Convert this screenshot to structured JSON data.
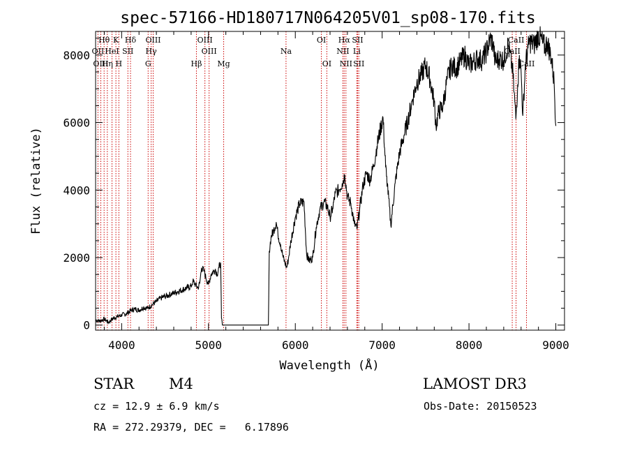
{
  "chart_data": {
    "type": "line",
    "title": "spec-57166-HD180717N064205V01_sp08-170.fits",
    "xlabel": "Wavelength (Å)",
    "ylabel": "Flux (relative)",
    "xlim": [
      3700,
      9100
    ],
    "ylim": [
      -150,
      8700
    ],
    "xticks": [
      4000,
      5000,
      6000,
      7000,
      8000,
      9000
    ],
    "yticks": [
      0,
      2000,
      4000,
      6000,
      8000
    ],
    "gap": [
      5160,
      5690
    ],
    "series": [
      {
        "name": "flux",
        "x": [
          3700,
          3750,
          3800,
          3850,
          3900,
          3950,
          4000,
          4050,
          4100,
          4150,
          4200,
          4250,
          4300,
          4350,
          4400,
          4450,
          4500,
          4550,
          4600,
          4650,
          4700,
          4750,
          4800,
          4820,
          4850,
          4880,
          4900,
          4920,
          4950,
          4970,
          5000,
          5030,
          5060,
          5080,
          5100,
          5120,
          5140,
          5150,
          5160,
          5690,
          5700,
          5720,
          5750,
          5780,
          5800,
          5830,
          5860,
          5900,
          5920,
          5950,
          6000,
          6050,
          6100,
          6130,
          6160,
          6200,
          6240,
          6280,
          6330,
          6370,
          6400,
          6430,
          6460,
          6500,
          6540,
          6570,
          6600,
          6640,
          6680,
          6710,
          6740,
          6780,
          6820,
          6860,
          6900,
          6940,
          6980,
          7010,
          7040,
          7050,
          7060,
          7100,
          7150,
          7200,
          7250,
          7300,
          7350,
          7400,
          7450,
          7500,
          7550,
          7600,
          7620,
          7650,
          7700,
          7750,
          7800,
          7850,
          7900,
          7950,
          8000,
          8050,
          8100,
          8150,
          8200,
          8250,
          8280,
          8300,
          8350,
          8400,
          8450,
          8500,
          8520,
          8540,
          8560,
          8580,
          8600,
          8620,
          8650,
          8680,
          8700,
          8750,
          8800,
          8850,
          8880,
          8900,
          8950,
          8980,
          9000
        ],
        "y": [
          150,
          120,
          180,
          80,
          200,
          250,
          300,
          330,
          420,
          480,
          440,
          520,
          500,
          600,
          700,
          800,
          850,
          900,
          950,
          1000,
          1050,
          1100,
          1150,
          1300,
          1200,
          1100,
          1250,
          1700,
          1600,
          1400,
          1200,
          1500,
          1600,
          1650,
          1500,
          1700,
          1850,
          200,
          0,
          0,
          2200,
          2600,
          2800,
          3050,
          2700,
          2400,
          2000,
          1700,
          1950,
          2500,
          3200,
          3600,
          3650,
          2100,
          1900,
          2000,
          2900,
          3400,
          3650,
          3500,
          3200,
          3450,
          3900,
          4000,
          4200,
          4450,
          3800,
          3600,
          3000,
          2850,
          3400,
          4150,
          4500,
          4300,
          4700,
          5300,
          5800,
          6150,
          4700,
          4400,
          4200,
          2950,
          4200,
          5100,
          5600,
          6100,
          6700,
          7200,
          7400,
          7700,
          7300,
          6600,
          5900,
          6300,
          6500,
          7300,
          7700,
          7600,
          7800,
          8000,
          7700,
          7800,
          7900,
          7850,
          8100,
          8500,
          8300,
          7800,
          7900,
          7850,
          8300,
          7600,
          6900,
          6100,
          7100,
          8000,
          7500,
          6200,
          7700,
          8200,
          8400,
          8300,
          8600,
          8350,
          8200,
          8400,
          7900,
          7200,
          5900
        ]
      }
    ],
    "spectral_lines": [
      {
        "label": "Hθ",
        "wavelength": 3798,
        "row": 1
      },
      {
        "label": "OII",
        "wavelength": 3727,
        "row": 2
      },
      {
        "label": "OIII",
        "wavelength": 3760,
        "row": 3
      },
      {
        "label": "K",
        "wavelength": 3934,
        "row": 1
      },
      {
        "label": "HeI",
        "wavelength": 3889,
        "row": 2
      },
      {
        "label": "Hη",
        "wavelength": 3835,
        "row": 3
      },
      {
        "label": "SII",
        "wavelength": 4072,
        "row": 2
      },
      {
        "label": "H",
        "wavelength": 3968,
        "row": 3
      },
      {
        "label": "Hδ",
        "wavelength": 4102,
        "row": 1
      },
      {
        "label": "OIII",
        "wavelength": 4363,
        "row": 1
      },
      {
        "label": "Hγ",
        "wavelength": 4340,
        "row": 2
      },
      {
        "label": "G",
        "wavelength": 4305,
        "row": 3
      },
      {
        "label": "OIII",
        "wavelength": 4959,
        "row": 1
      },
      {
        "label": "OIII",
        "wavelength": 5007,
        "row": 2
      },
      {
        "label": "Hβ",
        "wavelength": 4861,
        "row": 3
      },
      {
        "label": "Mg",
        "wavelength": 5175,
        "row": 3
      },
      {
        "label": "Na",
        "wavelength": 5893,
        "row": 2
      },
      {
        "label": "OI",
        "wavelength": 6300,
        "row": 1
      },
      {
        "label": "OI",
        "wavelength": 6363,
        "row": 3
      },
      {
        "label": "Hα",
        "wavelength": 6563,
        "row": 1
      },
      {
        "label": "NII",
        "wavelength": 6548,
        "row": 2
      },
      {
        "label": "NII",
        "wavelength": 6583,
        "row": 3
      },
      {
        "label": "SII",
        "wavelength": 6717,
        "row": 1
      },
      {
        "label": "Li",
        "wavelength": 6708,
        "row": 2
      },
      {
        "label": "SII",
        "wavelength": 6731,
        "row": 3
      },
      {
        "label": "CaII",
        "wavelength": 8542,
        "row": 1
      },
      {
        "label": "CaII",
        "wavelength": 8498,
        "row": 2
      },
      {
        "label": "CaII",
        "wavelength": 8662,
        "row": 3
      }
    ]
  },
  "info": {
    "class": "STAR",
    "subclass": "M4",
    "redshift": "cz = 12.9 ± 6.9 km/s",
    "coords": "RA = 272.29379, DEC =   6.17896",
    "survey": "LAMOST DR3",
    "obs_date": "Obs-Date: 20150523"
  },
  "colors": {
    "spectrum": "#000000",
    "line_marker": "#cc0000",
    "axis": "#000000"
  }
}
